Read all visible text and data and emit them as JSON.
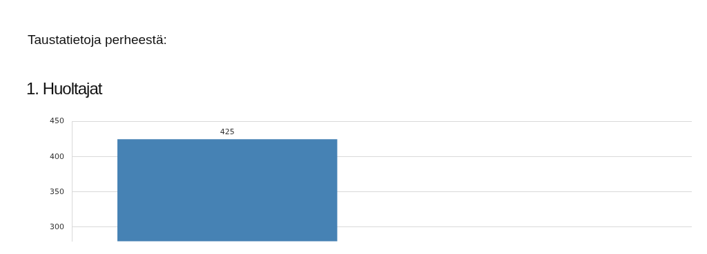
{
  "chart_data": {
    "type": "bar",
    "subtitle": "Taustatietoja perheestä:",
    "title": "1. Huoltajat",
    "categories": [
      null,
      null
    ],
    "values": [
      425,
      null
    ],
    "color": "#4682b4",
    "ylim": [
      280,
      450
    ],
    "yticks": [
      300,
      350,
      400,
      450
    ],
    "grid": "y",
    "tick_labels": "y",
    "data_labels": true
  }
}
